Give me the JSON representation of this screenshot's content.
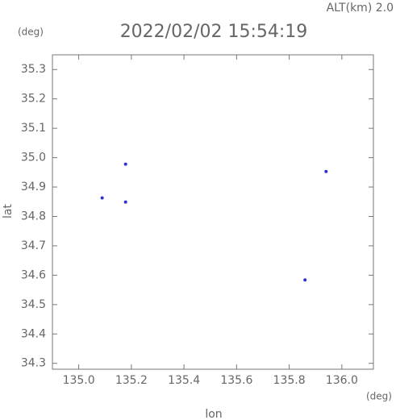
{
  "chart_data": {
    "type": "scatter",
    "title": "2022/02/02 15:54:19",
    "annotation": "ALT(km) 2.0",
    "y_unit": "(deg)",
    "x_unit": "(deg)",
    "xlabel": "lon",
    "ylabel": "lat",
    "x": [
      135.089,
      135.178,
      135.178,
      135.94,
      135.86
    ],
    "values": [
      34.863,
      34.978,
      34.849,
      34.953,
      34.584
    ],
    "color": "#3030d0",
    "xlim": [
      134.9,
      136.12
    ],
    "ylim": [
      34.28,
      35.35
    ],
    "xticks": [
      {
        "value": 135,
        "label": "135.0"
      },
      135.2,
      135.4,
      135.6,
      135.8,
      {
        "value": 136,
        "label": "136.0"
      }
    ],
    "yticks": [
      34.3,
      34.4,
      34.5,
      34.6,
      34.7,
      34.8,
      34.9,
      {
        "value": 35,
        "label": "35.0"
      },
      35.1,
      35.2,
      35.3
    ],
    "grid": false
  }
}
